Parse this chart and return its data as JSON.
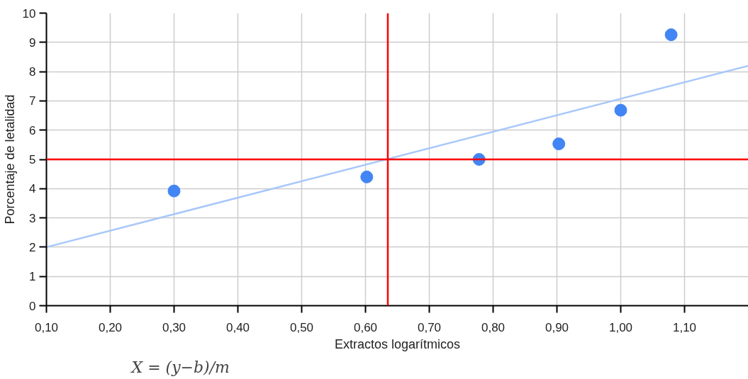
{
  "chart_data": {
    "type": "scatter",
    "xlabel": "Extractos logarítmicos",
    "ylabel": "Porcentaje de letalidad",
    "series": [
      {
        "color": "#4285f4",
        "marker": "circle",
        "x": [
          0.3,
          0.602,
          0.778,
          0.903,
          1.0,
          1.079
        ],
        "values": [
          3.92,
          4.4,
          5.0,
          5.53,
          6.68,
          9.26
        ]
      },
      {
        "type": "line",
        "color": "#a8c7fa",
        "x": [
          0.1,
          1.2
        ],
        "values": [
          2.0,
          8.2
        ]
      }
    ],
    "xlim": [
      0.1,
      1.2
    ],
    "ylim": [
      0,
      10
    ],
    "xticks": [
      {
        "value": 0.1,
        "label": "0,10"
      },
      {
        "value": 0.2,
        "label": "0,20"
      },
      {
        "value": 0.3,
        "label": "0,30"
      },
      {
        "value": 0.4,
        "label": "0,40"
      },
      {
        "value": 0.5,
        "label": "0,50"
      },
      {
        "value": 0.6,
        "label": "0,60"
      },
      {
        "value": 0.7,
        "label": "0,70"
      },
      {
        "value": 0.8,
        "label": "0,80"
      },
      {
        "value": 0.9,
        "label": "0,90"
      },
      {
        "value": 1.0,
        "label": "1,00"
      },
      {
        "value": 1.1,
        "label": "1,10"
      }
    ],
    "yticks": [
      0,
      1,
      2,
      3,
      4,
      5,
      6,
      7,
      8,
      9,
      10
    ],
    "ref_lines": [
      {
        "axis": "y",
        "value": 5,
        "color": "#ff0000"
      },
      {
        "axis": "x",
        "value": 0.635,
        "color": "#ff0000"
      }
    ],
    "annotations": [
      "X = (y−b)/m"
    ],
    "grid": true
  }
}
